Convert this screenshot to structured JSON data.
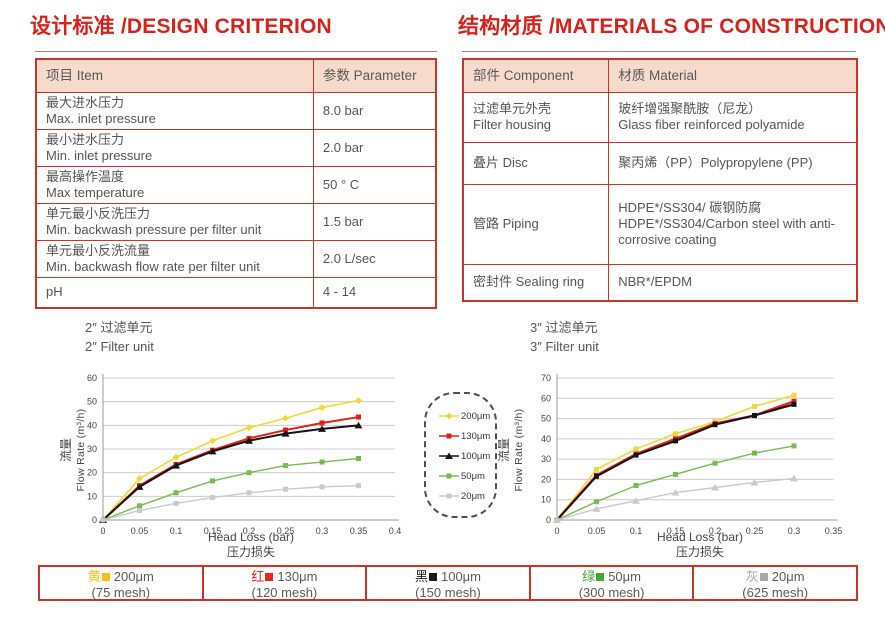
{
  "page": {
    "headings": {
      "design": "设计标准 /DESIGN CRITERION",
      "materials": "结构材质 /MATERIALS OF CONSTRUCTION"
    }
  },
  "design_table": {
    "headers": [
      "项目 Item",
      "参数 Parameter"
    ],
    "rows": [
      {
        "item_lines": [
          "最大进水压力",
          "Max. inlet pressure"
        ],
        "value_lines": [
          "8.0 bar"
        ],
        "h": 36
      },
      {
        "item_lines": [
          "最小进水压力",
          "Min. inlet pressure"
        ],
        "value_lines": [
          "2.0 bar"
        ],
        "h": 36
      },
      {
        "item_lines": [
          "最高操作温度",
          "Max temperature"
        ],
        "value_lines": [
          "50 ° C"
        ],
        "h": 36
      },
      {
        "item_lines": [
          "单元最小反洗压力",
          "Min. backwash pressure per filter unit"
        ],
        "value_lines": [
          "1.5 bar"
        ],
        "h": 36
      },
      {
        "item_lines": [
          "单元最小反洗流量",
          "Min. backwash flow rate per filter unit"
        ],
        "value_lines": [
          "2.0 L/sec"
        ],
        "h": 36
      },
      {
        "item_lines": [
          "pH"
        ],
        "value_lines": [
          "4 - 14"
        ],
        "h": 31
      }
    ]
  },
  "materials_table": {
    "headers": [
      "部件 Component",
      "材质 Material"
    ],
    "rows": [
      {
        "item_lines": [
          "过滤单元外壳",
          "Filter housing"
        ],
        "value_lines": [
          "玻纤增强聚酰胺（尼龙）",
          "Glass fiber reinforced polyamide"
        ],
        "h": 50
      },
      {
        "item_lines": [
          "叠片 Disc"
        ],
        "value_lines": [
          "聚丙烯（PP）Polypropylene (PP)"
        ],
        "h": 42
      },
      {
        "item_lines": [
          "管路 Piping"
        ],
        "value_lines": [
          "HDPE*/SS304/ 碳钢防腐",
          "HDPE*/SS304/Carbon steel with anti-corrosive coating"
        ],
        "h": 80
      },
      {
        "item_lines": [
          "密封件 Sealing ring"
        ],
        "value_lines": [
          "NBR*/EPDM"
        ],
        "h": 37
      }
    ]
  },
  "chart_data": [
    {
      "type": "line",
      "title_cn": "2″ 过滤单元",
      "title_en": "2″ Filter unit",
      "ylabel_cn": "流量",
      "ylabel_en": "Flow Rate (m³/h)",
      "xlabel_en": "Head Loss (bar)",
      "xlabel_cn": "压力损失",
      "ylim": [
        0,
        60
      ],
      "ystep": 10,
      "x": [
        0,
        0.05,
        0.1,
        0.15,
        0.2,
        0.25,
        0.3,
        0.35
      ],
      "xticks": [
        "0",
        "0.05",
        "0.1",
        "0.15",
        "0.2",
        "0.25",
        "0.3",
        "0.35",
        "0.4"
      ],
      "grid": true,
      "series": [
        {
          "name": "200μm",
          "color": "#efd93a",
          "marker": "diamond",
          "lw": 1.6,
          "values": [
            0,
            17.5,
            26.5,
            33.5,
            39,
            43,
            47.5,
            50.5
          ]
        },
        {
          "name": "130μm",
          "color": "#dd2018",
          "marker": "square",
          "lw": 2,
          "values": [
            0,
            14.5,
            23.5,
            29.5,
            34.5,
            38,
            41,
            43.5
          ]
        },
        {
          "name": "100μm",
          "color": "#141414",
          "marker": "triangle",
          "lw": 2,
          "values": [
            0,
            14,
            23,
            29,
            33.5,
            36.5,
            38.5,
            40
          ]
        },
        {
          "name": "50μm",
          "color": "#7cb953",
          "marker": "square",
          "lw": 1.4,
          "values": [
            0,
            6,
            11.5,
            16.5,
            20,
            23,
            24.5,
            26
          ]
        },
        {
          "name": "20μm",
          "color": "#c9c9c9",
          "marker": "square",
          "lw": 1.4,
          "values": [
            0,
            4,
            7,
            9.5,
            11.5,
            13,
            14,
            14.5
          ]
        }
      ]
    },
    {
      "type": "line",
      "title_cn": "3″ 过滤单元",
      "title_en": "3″ Filter unit",
      "ylabel_cn": "流量",
      "ylabel_en": "Flow Rate (m³/h)",
      "xlabel_en": "Head Loss (bar)",
      "xlabel_cn": "压力损失",
      "ylim": [
        0,
        70
      ],
      "ystep": 10,
      "x": [
        0,
        0.05,
        0.1,
        0.15,
        0.2,
        0.25,
        0.3
      ],
      "xticks": [
        "0",
        "0.05",
        "0.1",
        "0.15",
        "0.2",
        "0.25",
        "0.3",
        "0.35"
      ],
      "grid": true,
      "series": [
        {
          "name": "200μm",
          "color": "#efd93a",
          "marker": "square",
          "lw": 1.6,
          "values": [
            0,
            25,
            35,
            42.5,
            48.5,
            56,
            61.5
          ]
        },
        {
          "name": "130μm",
          "color": "#dd2018",
          "marker": "square",
          "lw": 2.4,
          "values": [
            0,
            22,
            32.5,
            40,
            47.5,
            51.5,
            58.5
          ]
        },
        {
          "name": "100μm",
          "color": "#141414",
          "marker": "square",
          "lw": 2,
          "values": [
            0,
            21.5,
            32,
            39,
            47,
            51.5,
            57
          ]
        },
        {
          "name": "50μm",
          "color": "#7cb953",
          "marker": "square",
          "lw": 1.4,
          "values": [
            0,
            9,
            17,
            22.5,
            28,
            33,
            36.5
          ]
        },
        {
          "name": "20μm",
          "color": "#c9c9c9",
          "marker": "triangle",
          "lw": 1.4,
          "values": [
            0,
            5.5,
            9.5,
            13.5,
            16,
            18.5,
            20.5
          ]
        }
      ]
    }
  ],
  "chart_legend": {
    "items": [
      {
        "label": "200μm",
        "color": "#efd93a",
        "marker": "diamond"
      },
      {
        "label": "130μm",
        "color": "#dd2018",
        "marker": "square"
      },
      {
        "label": "100μm",
        "color": "#141414",
        "marker": "triangle"
      },
      {
        "label": "50μm",
        "color": "#7cb953",
        "marker": "square"
      },
      {
        "label": "20μm",
        "color": "#c9c9c9",
        "marker": "square"
      }
    ]
  },
  "bottom_legend": {
    "cells": [
      {
        "color_cn": "黄",
        "color": "#f5c117",
        "size": "200μm",
        "mesh": "(75 mesh)"
      },
      {
        "color_cn": "红",
        "color": "#e8251f",
        "size": "130μm",
        "mesh": "(120 mesh)"
      },
      {
        "color_cn": "黑",
        "color": "#1a1a1a",
        "size": "100μm",
        "mesh": "(150 mesh)"
      },
      {
        "color_cn": "绿",
        "color": "#3faa35",
        "size": "50μm",
        "mesh": "(300 mesh)"
      },
      {
        "color_cn": "灰",
        "color": "#a8a8a8",
        "size": "20μm",
        "mesh": "(625 mesh)"
      }
    ]
  },
  "colors": {
    "accent_red": "#d2241c",
    "table_border": "#c0372b",
    "table_header_bg": "#f6dbcc",
    "grid": "#cccccc",
    "text_gray": "#555555"
  }
}
